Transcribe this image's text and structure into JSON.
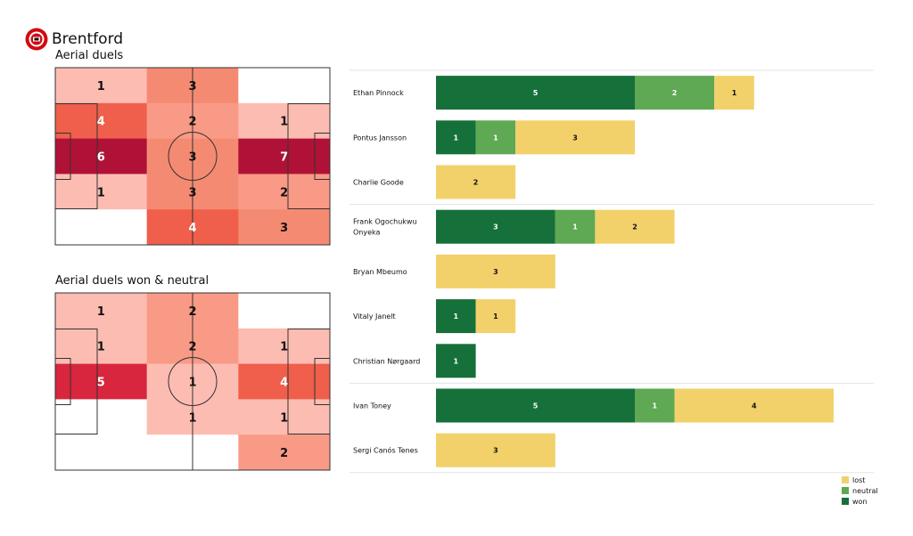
{
  "team": {
    "name": "Brentford"
  },
  "colors": {
    "won": "#16703a",
    "neutral": "#5fa854",
    "lost": "#f2d16b",
    "heat_scale": [
      "#ffffff",
      "#fdbcb2",
      "#f99a86",
      "#f58a72",
      "#ef5f4b",
      "#d7263d",
      "#b01237"
    ]
  },
  "chart_data": [
    {
      "type": "heatmap",
      "title": "Aerial duels",
      "grid": [
        [
          1,
          3,
          0
        ],
        [
          4,
          2,
          1
        ],
        [
          6,
          3,
          7
        ],
        [
          1,
          3,
          2
        ],
        [
          0,
          4,
          3
        ]
      ]
    },
    {
      "type": "heatmap",
      "title": "Aerial duels won & neutral",
      "grid": [
        [
          1,
          2,
          0
        ],
        [
          1,
          2,
          1
        ],
        [
          5,
          1,
          4
        ],
        [
          0,
          1,
          1
        ],
        [
          0,
          0,
          2
        ]
      ]
    },
    {
      "type": "bar",
      "stacked": true,
      "orientation": "horizontal",
      "categories": [
        "Ethan Pinnock",
        "Pontus Jansson",
        "Charlie Goode",
        "Frank Ogochukwu Onyeka",
        "Bryan Mbeumo",
        "Vitaly Janelt",
        "Christian Nørgaard",
        "Ivan Toney",
        "Sergi Canós Tenes"
      ],
      "category_lines": [
        [
          "Ethan Pinnock"
        ],
        [
          "Pontus Jansson"
        ],
        [
          "Charlie Goode"
        ],
        [
          "Frank Ogochukwu",
          "Onyeka"
        ],
        [
          "Bryan Mbeumo"
        ],
        [
          "Vitaly Janelt"
        ],
        [
          "Christian Nørgaard"
        ],
        [
          "Ivan Toney"
        ],
        [
          "Sergi Canós Tenes"
        ]
      ],
      "group_separators_after": [
        2,
        6
      ],
      "series": [
        {
          "name": "won",
          "values": [
            5,
            1,
            0,
            3,
            0,
            1,
            1,
            5,
            0
          ]
        },
        {
          "name": "neutral",
          "values": [
            2,
            1,
            0,
            1,
            0,
            0,
            0,
            1,
            0
          ]
        },
        {
          "name": "lost",
          "values": [
            1,
            3,
            2,
            2,
            3,
            1,
            0,
            4,
            3
          ]
        }
      ],
      "legend": {
        "placement": "bottom-right",
        "order": [
          "lost",
          "neutral",
          "won"
        ]
      }
    }
  ]
}
